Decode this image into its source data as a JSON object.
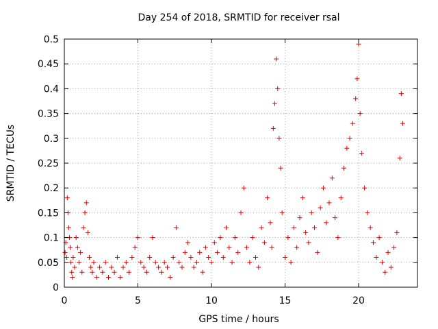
{
  "chart_data": {
    "type": "scatter",
    "title": "Day 254 of 2018, SRMTID for receiver rsal",
    "xlabel": "GPS time / hours",
    "ylabel": "SRMTID / TECUs",
    "xlim": [
      0,
      24
    ],
    "ylim": [
      0,
      0.5
    ],
    "xticks": [
      0,
      5,
      10,
      15,
      20
    ],
    "yticks": [
      0,
      0.05,
      0.1,
      0.15,
      0.2,
      0.25,
      0.3,
      0.35,
      0.4,
      0.45,
      0.5
    ],
    "ytick_labels": [
      "0",
      "0.05",
      "0.1",
      "0.15",
      "0.2",
      "0.25",
      "0.3",
      "0.35",
      "0.4",
      "0.45",
      "0.5"
    ],
    "grid": true,
    "marker": "+",
    "color": "#e00000",
    "series": [
      {
        "name": "SRMTID",
        "points": [
          [
            0.05,
            0.07
          ],
          [
            0.1,
            0.09
          ],
          [
            0.15,
            0.06
          ],
          [
            0.2,
            0.18
          ],
          [
            0.25,
            0.15
          ],
          [
            0.3,
            0.12
          ],
          [
            0.35,
            0.1
          ],
          [
            0.4,
            0.08
          ],
          [
            0.45,
            0.05
          ],
          [
            0.5,
            0.03
          ],
          [
            0.55,
            0.02
          ],
          [
            0.6,
            0.06
          ],
          [
            0.7,
            0.04
          ],
          [
            0.8,
            0.1
          ],
          [
            0.9,
            0.08
          ],
          [
            1.0,
            0.05
          ],
          [
            1.1,
            0.07
          ],
          [
            1.2,
            0.03
          ],
          [
            1.3,
            0.12
          ],
          [
            1.4,
            0.15
          ],
          [
            1.5,
            0.17
          ],
          [
            1.6,
            0.11
          ],
          [
            1.7,
            0.06
          ],
          [
            1.8,
            0.04
          ],
          [
            1.9,
            0.03
          ],
          [
            2.0,
            0.05
          ],
          [
            2.2,
            0.02
          ],
          [
            2.4,
            0.04
          ],
          [
            2.6,
            0.03
          ],
          [
            2.8,
            0.05
          ],
          [
            3.0,
            0.02
          ],
          [
            3.2,
            0.04
          ],
          [
            3.4,
            0.03
          ],
          [
            3.6,
            0.06
          ],
          [
            3.8,
            0.02
          ],
          [
            4.0,
            0.04
          ],
          [
            4.2,
            0.05
          ],
          [
            4.4,
            0.03
          ],
          [
            4.6,
            0.06
          ],
          [
            4.8,
            0.08
          ],
          [
            5.0,
            0.1
          ],
          [
            5.2,
            0.05
          ],
          [
            5.4,
            0.04
          ],
          [
            5.6,
            0.03
          ],
          [
            5.8,
            0.06
          ],
          [
            6.0,
            0.1
          ],
          [
            6.2,
            0.05
          ],
          [
            6.4,
            0.04
          ],
          [
            6.6,
            0.03
          ],
          [
            6.8,
            0.05
          ],
          [
            7.0,
            0.04
          ],
          [
            7.2,
            0.02
          ],
          [
            7.4,
            0.06
          ],
          [
            7.6,
            0.12
          ],
          [
            7.8,
            0.05
          ],
          [
            8.0,
            0.04
          ],
          [
            8.2,
            0.07
          ],
          [
            8.4,
            0.09
          ],
          [
            8.6,
            0.06
          ],
          [
            8.8,
            0.04
          ],
          [
            9.0,
            0.05
          ],
          [
            9.2,
            0.07
          ],
          [
            9.4,
            0.03
          ],
          [
            9.6,
            0.08
          ],
          [
            9.8,
            0.06
          ],
          [
            10.0,
            0.05
          ],
          [
            10.2,
            0.09
          ],
          [
            10.4,
            0.07
          ],
          [
            10.6,
            0.1
          ],
          [
            10.8,
            0.06
          ],
          [
            11.0,
            0.12
          ],
          [
            11.2,
            0.08
          ],
          [
            11.4,
            0.05
          ],
          [
            11.6,
            0.1
          ],
          [
            11.8,
            0.07
          ],
          [
            12.0,
            0.15
          ],
          [
            12.2,
            0.2
          ],
          [
            12.4,
            0.08
          ],
          [
            12.6,
            0.05
          ],
          [
            12.8,
            0.1
          ],
          [
            13.0,
            0.06
          ],
          [
            13.2,
            0.04
          ],
          [
            13.4,
            0.12
          ],
          [
            13.6,
            0.09
          ],
          [
            13.8,
            0.18
          ],
          [
            14.0,
            0.13
          ],
          [
            14.1,
            0.08
          ],
          [
            14.2,
            0.32
          ],
          [
            14.3,
            0.37
          ],
          [
            14.4,
            0.46
          ],
          [
            14.5,
            0.4
          ],
          [
            14.6,
            0.3
          ],
          [
            14.7,
            0.24
          ],
          [
            14.8,
            0.15
          ],
          [
            15.0,
            0.06
          ],
          [
            15.2,
            0.1
          ],
          [
            15.4,
            0.05
          ],
          [
            15.6,
            0.12
          ],
          [
            15.8,
            0.08
          ],
          [
            16.0,
            0.14
          ],
          [
            16.2,
            0.18
          ],
          [
            16.4,
            0.11
          ],
          [
            16.6,
            0.09
          ],
          [
            16.8,
            0.15
          ],
          [
            17.0,
            0.12
          ],
          [
            17.2,
            0.07
          ],
          [
            17.4,
            0.16
          ],
          [
            17.6,
            0.2
          ],
          [
            17.8,
            0.13
          ],
          [
            18.0,
            0.17
          ],
          [
            18.2,
            0.22
          ],
          [
            18.4,
            0.14
          ],
          [
            18.6,
            0.1
          ],
          [
            18.8,
            0.18
          ],
          [
            19.0,
            0.24
          ],
          [
            19.2,
            0.28
          ],
          [
            19.4,
            0.3
          ],
          [
            19.6,
            0.33
          ],
          [
            19.8,
            0.38
          ],
          [
            19.9,
            0.42
          ],
          [
            20.0,
            0.49
          ],
          [
            20.1,
            0.35
          ],
          [
            20.2,
            0.27
          ],
          [
            20.4,
            0.2
          ],
          [
            20.6,
            0.15
          ],
          [
            20.8,
            0.12
          ],
          [
            21.0,
            0.09
          ],
          [
            21.2,
            0.06
          ],
          [
            21.4,
            0.1
          ],
          [
            21.6,
            0.05
          ],
          [
            21.8,
            0.03
          ],
          [
            22.0,
            0.07
          ],
          [
            22.2,
            0.04
          ],
          [
            22.4,
            0.08
          ],
          [
            22.6,
            0.11
          ],
          [
            22.8,
            0.26
          ],
          [
            22.9,
            0.39
          ],
          [
            23.0,
            0.33
          ]
        ]
      }
    ]
  }
}
